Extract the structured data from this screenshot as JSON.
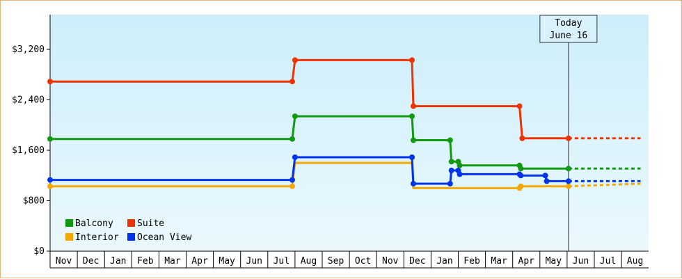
{
  "chart_data": {
    "type": "line",
    "step": true,
    "title": "",
    "xlabel": "",
    "ylabel": "",
    "ylim": [
      0,
      3200
    ],
    "y_ticks": [
      0,
      800,
      1600,
      2400,
      3200
    ],
    "y_tick_labels": [
      "$0",
      "$800",
      "$1,600",
      "$2,400",
      "$3,200"
    ],
    "x_tick_labels": [
      "Nov",
      "Dec",
      "Jan",
      "Feb",
      "Mar",
      "Apr",
      "May",
      "Jun",
      "Jul",
      "Aug",
      "Sep",
      "Oct",
      "Nov",
      "Dec",
      "Jan",
      "Feb",
      "Mar",
      "Apr",
      "May",
      "Jun",
      "Jul",
      "Aug"
    ],
    "x_axis_unit": "month index (0 = Nov, 8 = Jul, 12 = Nov, 19 = Jun)",
    "x_range": [
      0,
      21.7
    ],
    "grid": false,
    "legend_placement": "bottom-left",
    "today": {
      "x": 19.05,
      "line1": "Today",
      "line2": "June 16"
    },
    "series": [
      {
        "name": "Suite",
        "color": "#ee3300",
        "points": [
          [
            0,
            2690
          ],
          [
            8.9,
            2690
          ],
          [
            9.0,
            3030
          ],
          [
            13.3,
            3030
          ],
          [
            13.35,
            2300
          ],
          [
            17.25,
            2300
          ],
          [
            17.35,
            1790
          ],
          [
            19.05,
            1790
          ]
        ],
        "markers": [
          [
            0,
            2690
          ],
          [
            8.9,
            2690
          ],
          [
            9.0,
            3030
          ],
          [
            13.3,
            3030
          ],
          [
            13.35,
            2300
          ],
          [
            17.25,
            2300
          ],
          [
            17.35,
            1790
          ],
          [
            19.05,
            1790
          ]
        ]
      },
      {
        "name": "Balcony",
        "color": "#119911",
        "points": [
          [
            0,
            1780
          ],
          [
            8.9,
            1780
          ],
          [
            9.0,
            2140
          ],
          [
            13.3,
            2140
          ],
          [
            13.35,
            1760
          ],
          [
            14.7,
            1760
          ],
          [
            14.75,
            1420
          ],
          [
            15.0,
            1420
          ],
          [
            15.05,
            1360
          ],
          [
            17.25,
            1360
          ],
          [
            17.3,
            1310
          ],
          [
            19.05,
            1310
          ]
        ],
        "markers": [
          [
            0,
            1780
          ],
          [
            8.9,
            1780
          ],
          [
            9.0,
            2140
          ],
          [
            13.3,
            2140
          ],
          [
            13.35,
            1760
          ],
          [
            14.7,
            1760
          ],
          [
            14.75,
            1420
          ],
          [
            15.0,
            1420
          ],
          [
            15.05,
            1360
          ],
          [
            17.25,
            1360
          ],
          [
            17.3,
            1310
          ],
          [
            19.05,
            1310
          ]
        ]
      },
      {
        "name": "Interior",
        "color": "#f5a800",
        "points": [
          [
            0,
            1030
          ],
          [
            8.9,
            1030
          ],
          [
            9.0,
            1400
          ],
          [
            13.3,
            1400
          ],
          [
            13.35,
            1000
          ],
          [
            17.25,
            1000
          ],
          [
            17.3,
            1030
          ],
          [
            19.05,
            1030
          ]
        ],
        "markers": [
          [
            0,
            1030
          ],
          [
            8.9,
            1030
          ],
          [
            17.25,
            1000
          ],
          [
            17.3,
            1030
          ],
          [
            19.05,
            1030
          ]
        ]
      },
      {
        "name": "Ocean View",
        "color": "#0033ee",
        "points": [
          [
            0,
            1130
          ],
          [
            8.9,
            1130
          ],
          [
            9.0,
            1490
          ],
          [
            13.3,
            1490
          ],
          [
            13.35,
            1070
          ],
          [
            14.7,
            1070
          ],
          [
            14.75,
            1280
          ],
          [
            15.0,
            1280
          ],
          [
            15.05,
            1220
          ],
          [
            17.25,
            1220
          ],
          [
            17.3,
            1200
          ],
          [
            18.2,
            1200
          ],
          [
            18.25,
            1110
          ],
          [
            19.05,
            1110
          ]
        ],
        "markers": [
          [
            0,
            1130
          ],
          [
            8.9,
            1130
          ],
          [
            9.0,
            1490
          ],
          [
            13.3,
            1490
          ],
          [
            13.35,
            1070
          ],
          [
            14.7,
            1070
          ],
          [
            14.75,
            1280
          ],
          [
            15.0,
            1280
          ],
          [
            15.05,
            1220
          ],
          [
            17.25,
            1220
          ],
          [
            17.3,
            1200
          ],
          [
            18.2,
            1200
          ],
          [
            18.25,
            1110
          ],
          [
            19.05,
            1110
          ]
        ]
      }
    ],
    "projections": [
      {
        "name": "Suite",
        "color": "#ee3300",
        "points": [
          [
            19.05,
            1790
          ],
          [
            21.7,
            1790
          ]
        ]
      },
      {
        "name": "Balcony",
        "color": "#119911",
        "points": [
          [
            19.05,
            1310
          ],
          [
            21.7,
            1310
          ]
        ]
      },
      {
        "name": "Ocean View",
        "color": "#0033ee",
        "points": [
          [
            19.05,
            1110
          ],
          [
            21.7,
            1110
          ]
        ]
      },
      {
        "name": "Interior",
        "color": "#f5a800",
        "points": [
          [
            19.05,
            1030
          ],
          [
            21.7,
            1070
          ]
        ]
      }
    ],
    "legend": [
      {
        "name": "Balcony",
        "color": "#119911"
      },
      {
        "name": "Suite",
        "color": "#ee3300"
      },
      {
        "name": "Interior",
        "color": "#f5a800"
      },
      {
        "name": "Ocean View",
        "color": "#0033ee"
      }
    ]
  }
}
